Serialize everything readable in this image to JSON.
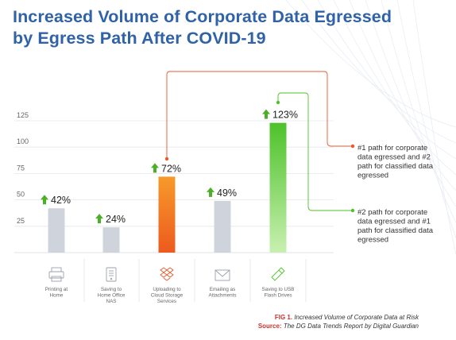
{
  "title": {
    "line1": "Increased Volume of Corporate Data Egressed",
    "line2": "by Egress Path After COVID-19"
  },
  "chart_data": {
    "type": "bar",
    "categories": [
      {
        "lines": [
          "Printing at",
          "Home"
        ],
        "icon": "printer-icon"
      },
      {
        "lines": [
          "Saving to",
          "Home Office",
          "NAS"
        ],
        "icon": "nas-drive-icon"
      },
      {
        "lines": [
          "Uploading to",
          "Cloud Storage",
          "Services"
        ],
        "icon": "dropbox-icon"
      },
      {
        "lines": [
          "Emailing as",
          "Attachments"
        ],
        "icon": "envelope-icon"
      },
      {
        "lines": [
          "Saving to USB",
          "Flash Drives"
        ],
        "icon": "usb-flash-drive-icon"
      }
    ],
    "values": [
      42,
      24,
      72,
      49,
      123
    ],
    "value_labels": [
      "42%",
      "24%",
      "72%",
      "49%",
      "123%"
    ],
    "yticks": [
      25,
      50,
      75,
      100,
      125
    ],
    "ylim": [
      0,
      140
    ],
    "grid": true,
    "colors": {
      "default": "#cfd4dc",
      "highlight_orange": [
        "#f79a2a",
        "#ec5a1e"
      ],
      "highlight_green": [
        "#c8f0b0",
        "#4dc22a"
      ],
      "up_arrow": "#4caf2a",
      "annotation_orange": "#e8592c",
      "annotation_green": "#4dc22a"
    },
    "highlights": {
      "orange": 2,
      "green": 4
    },
    "annotations": [
      {
        "bar_index": 2,
        "color": "orange",
        "lines": [
          "#1 path for corporate",
          "data egressed and #2",
          "path for classified data",
          "egressed"
        ]
      },
      {
        "bar_index": 4,
        "color": "green",
        "lines": [
          "#2 path for corporate",
          "data egressed and #1",
          "path for classified data",
          "egressed"
        ]
      }
    ]
  },
  "caption": {
    "fig_label": "FIG 1.",
    "fig_text": "Increased Volume of Corporate Data at Risk",
    "source_label": "Source:",
    "source_text": "The DG Data Trends Report by Digital Guardian"
  }
}
